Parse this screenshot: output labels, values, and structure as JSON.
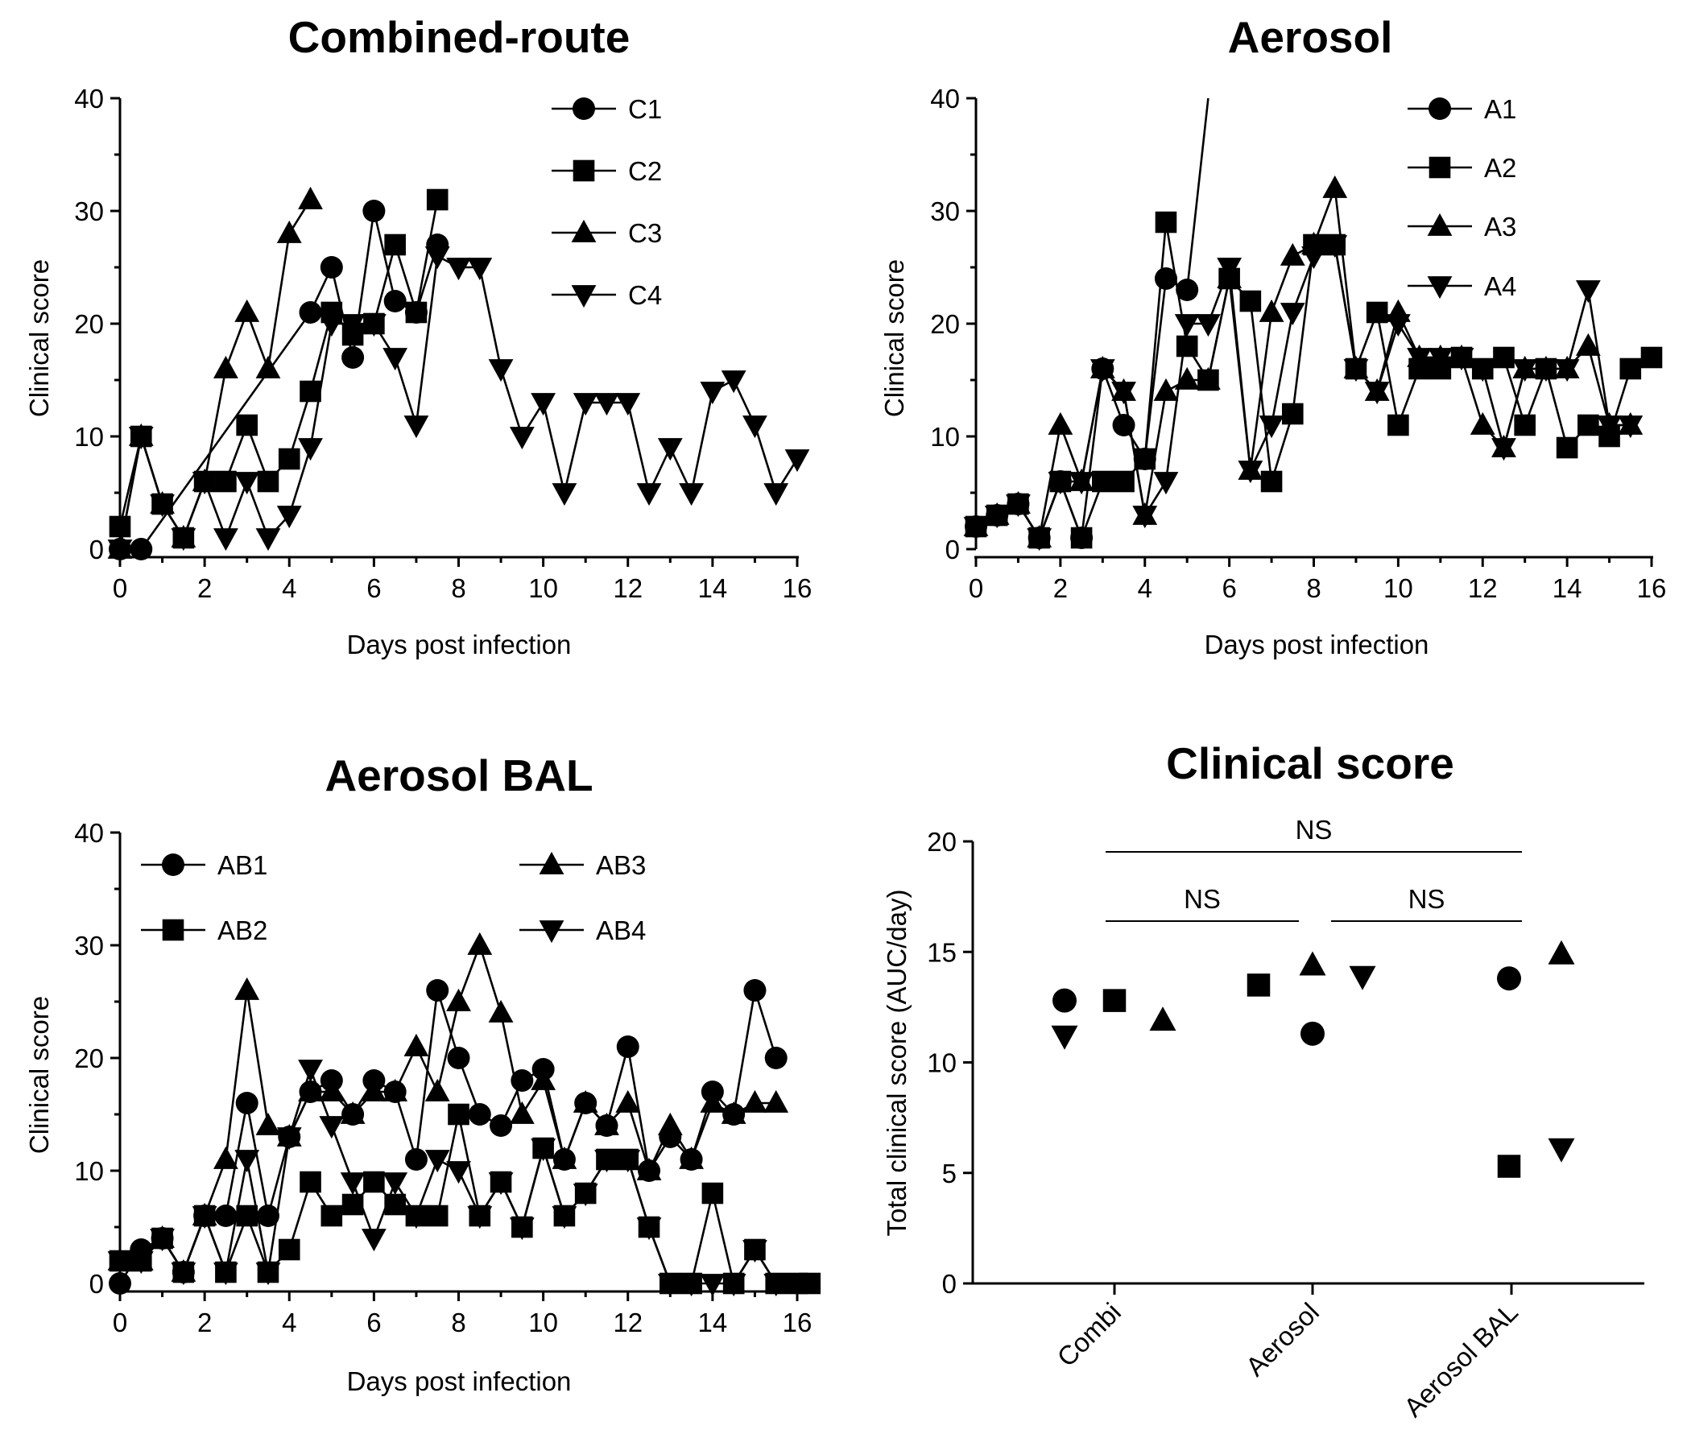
{
  "colors": {
    "ink": "#000000",
    "background": "#ffffff"
  },
  "chart_data": [
    {
      "type": "line",
      "title": "Combined-route",
      "xlabel": "Days post infection",
      "ylabel": "Clinical score",
      "xlim": [
        0,
        16
      ],
      "ylim": [
        0,
        40
      ],
      "xticks": [
        "0",
        "2",
        "4",
        "6",
        "8",
        "10",
        "12",
        "14",
        "16"
      ],
      "yticks": [
        "0",
        "10",
        "20",
        "30",
        "40"
      ],
      "legend": "top-right",
      "series": [
        {
          "name": "C1",
          "marker": "circle",
          "x": [
            0,
            0.5,
            4.5,
            5,
            5.5,
            6,
            6.5,
            7,
            7.5
          ],
          "y": [
            0,
            0,
            21,
            25,
            17,
            30,
            22,
            21,
            27
          ]
        },
        {
          "name": "C2",
          "marker": "square",
          "x": [
            0,
            0.5,
            1,
            1.5,
            2,
            2.5,
            3,
            3.5,
            4,
            4.5,
            5,
            5.5,
            6,
            6.5,
            7,
            7.5
          ],
          "y": [
            2,
            10,
            4,
            1,
            6,
            6,
            11,
            6,
            8,
            14,
            21,
            19,
            20,
            27,
            21,
            31
          ]
        },
        {
          "name": "C3",
          "marker": "triangle-up",
          "x": [
            0,
            0.5,
            1,
            1.5,
            2,
            2.5,
            3,
            3.5,
            4,
            4.5
          ],
          "y": [
            0,
            10,
            4,
            1,
            6,
            16,
            21,
            16,
            28,
            31
          ]
        },
        {
          "name": "C4",
          "marker": "triangle-down",
          "x": [
            0,
            0.5,
            1,
            1.5,
            2,
            2.5,
            3,
            3.5,
            4,
            4.5,
            5,
            5.5,
            6,
            6.5,
            7,
            7.5,
            8,
            8.5,
            9,
            9.5,
            10,
            10.5,
            11,
            11.5,
            12,
            12.5,
            13,
            13.5,
            14,
            14.5,
            15,
            15.5,
            16
          ],
          "y": [
            0,
            10,
            4,
            1,
            6,
            1,
            6,
            1,
            3,
            9,
            20,
            20,
            20,
            17,
            11,
            26,
            25,
            25,
            16,
            10,
            13,
            5,
            13,
            13,
            13,
            5,
            9,
            5,
            14,
            15,
            11,
            5,
            8
          ]
        }
      ]
    },
    {
      "type": "line",
      "title": "Aerosol",
      "xlabel": "Days post infection",
      "ylabel": "Clinical score",
      "xlim": [
        0,
        16
      ],
      "ylim": [
        0,
        40
      ],
      "xticks": [
        "0",
        "2",
        "4",
        "6",
        "8",
        "10",
        "12",
        "14",
        "16"
      ],
      "yticks": [
        "0",
        "10",
        "20",
        "30",
        "40"
      ],
      "legend": "top-right",
      "series": [
        {
          "name": "A1",
          "marker": "circle",
          "x": [
            0,
            0.5,
            1,
            1.5,
            2,
            2.5,
            3,
            3.5,
            4,
            4.5,
            5,
            5.5
          ],
          "y": [
            2,
            3,
            4,
            1,
            6,
            1,
            16,
            11,
            8,
            24,
            23,
            40
          ]
        },
        {
          "name": "A2",
          "marker": "square",
          "x": [
            0,
            0.5,
            1,
            1.5,
            2,
            2.5,
            3,
            3.5,
            4,
            4.5,
            5,
            5.5,
            6,
            6.5,
            7,
            7.5,
            8,
            8.5,
            9,
            9.5,
            10,
            10.5,
            11,
            11.5,
            12,
            12.5,
            13,
            13.5,
            14,
            14.5,
            15,
            15.5,
            16
          ],
          "y": [
            2,
            3,
            4,
            1,
            6,
            1,
            6,
            6,
            8,
            29,
            18,
            15,
            24,
            22,
            6,
            12,
            27,
            27,
            16,
            21,
            11,
            16,
            16,
            17,
            16,
            17,
            11,
            16,
            9,
            11,
            10,
            16,
            17
          ]
        },
        {
          "name": "A3",
          "marker": "triangle-up",
          "x": [
            0,
            0.5,
            1,
            1.5,
            2,
            2.5,
            3,
            3.5,
            4,
            4.5,
            5,
            5.5,
            6,
            6.5,
            7,
            7.5,
            8,
            8.5,
            9,
            9.5,
            10,
            10.5,
            11,
            11.5,
            12,
            12.5,
            13,
            13.5,
            14,
            14.5,
            15,
            15.5
          ],
          "y": [
            2,
            3,
            4,
            1,
            11,
            6,
            16,
            14,
            3,
            14,
            15,
            15,
            24,
            7,
            21,
            26,
            27,
            32,
            16,
            14,
            21,
            17,
            17,
            17,
            11,
            9,
            16,
            16,
            16,
            18,
            11,
            11
          ]
        },
        {
          "name": "A4",
          "marker": "triangle-down",
          "x": [
            0,
            0.5,
            1,
            1.5,
            2,
            2.5,
            3,
            3.5,
            4,
            4.5,
            5,
            5.5,
            6,
            6.5,
            7,
            7.5,
            8,
            8.5,
            9,
            9.5,
            10,
            10.5,
            11,
            11.5,
            12,
            12.5,
            13,
            13.5,
            14,
            14.5,
            15,
            15.5
          ],
          "y": [
            2,
            3,
            4,
            1,
            6,
            6,
            16,
            14,
            3,
            6,
            20,
            20,
            25,
            7,
            11,
            21,
            26,
            27,
            16,
            14,
            20,
            17,
            17,
            17,
            16,
            9,
            16,
            16,
            16,
            23,
            11,
            11
          ]
        }
      ]
    },
    {
      "type": "line",
      "title": "Aerosol BAL",
      "xlabel": "Days post infection",
      "ylabel": "Clinical score",
      "xlim": [
        0,
        16.3
      ],
      "ylim": [
        0,
        40
      ],
      "xticks": [
        "0",
        "2",
        "4",
        "6",
        "8",
        "10",
        "12",
        "14",
        "16"
      ],
      "yticks": [
        "0",
        "10",
        "20",
        "30",
        "40"
      ],
      "legend": "top",
      "series": [
        {
          "name": "AB1",
          "marker": "circle",
          "x": [
            0,
            0.5,
            1,
            1.5,
            2,
            2.5,
            3,
            3.5,
            4,
            4.5,
            5,
            5.5,
            6,
            6.5,
            7,
            7.5,
            8,
            8.5,
            9,
            9.5,
            10,
            10.5,
            11,
            11.5,
            12,
            12.5,
            13,
            13.5,
            14,
            14.5,
            15,
            15.5
          ],
          "y": [
            0,
            3,
            4,
            1,
            6,
            6,
            16,
            6,
            13,
            17,
            18,
            15,
            18,
            17,
            11,
            26,
            20,
            15,
            14,
            18,
            19,
            11,
            16,
            14,
            21,
            10,
            13,
            11,
            17,
            15,
            26,
            20
          ]
        },
        {
          "name": "AB2",
          "marker": "square",
          "x": [
            0,
            0.5,
            1,
            1.5,
            2,
            2.5,
            3,
            3.5,
            4,
            4.5,
            5,
            5.5,
            6,
            6.5,
            7,
            7.5,
            8,
            8.5,
            9,
            9.5,
            10,
            10.5,
            11,
            11.5,
            12,
            12.5,
            13,
            13.5,
            14,
            14.5,
            15,
            15.5,
            16,
            16.3
          ],
          "y": [
            2,
            2,
            4,
            1,
            6,
            1,
            6,
            1,
            3,
            9,
            6,
            7,
            9,
            7,
            6,
            6,
            15,
            6,
            9,
            5,
            12,
            6,
            8,
            11,
            11,
            5,
            0,
            0,
            8,
            0,
            3,
            0,
            0,
            0
          ]
        },
        {
          "name": "AB3",
          "marker": "triangle-up",
          "x": [
            0,
            0.5,
            1,
            1.5,
            2,
            2.5,
            3,
            3.5,
            4,
            4.5,
            5,
            5.5,
            6,
            6.5,
            7,
            7.5,
            8,
            8.5,
            9,
            9.5,
            10,
            10.5,
            11,
            11.5,
            12,
            12.5,
            13,
            13.5,
            14,
            14.5,
            15,
            15.5
          ],
          "y": [
            2,
            2,
            4,
            1,
            6,
            11,
            26,
            14,
            13,
            17,
            17,
            15,
            17,
            17,
            21,
            17,
            25,
            30,
            24,
            15,
            18,
            11,
            16,
            14,
            16,
            10,
            14,
            11,
            16,
            15,
            16,
            16
          ]
        },
        {
          "name": "AB4",
          "marker": "triangle-down",
          "x": [
            0,
            0.5,
            1,
            1.5,
            2,
            2.5,
            3,
            3.5,
            4,
            4.5,
            5,
            5.5,
            6,
            6.5,
            7,
            7.5,
            8,
            8.5,
            9,
            9.5,
            10,
            10.5,
            11,
            11.5,
            12,
            12.5,
            13,
            13.5,
            14,
            14.5,
            15,
            15.5,
            16
          ],
          "y": [
            2,
            2,
            4,
            1,
            6,
            1,
            11,
            1,
            13,
            19,
            14,
            9,
            4,
            9,
            6,
            11,
            10,
            6,
            9,
            5,
            12,
            6,
            8,
            11,
            11,
            5,
            0,
            0,
            0,
            0,
            3,
            0,
            0
          ]
        }
      ]
    },
    {
      "type": "scatter",
      "title": "Clinical score",
      "xlabel": "",
      "ylabel": "Total clinical score (AUC/day)",
      "ylim": [
        0,
        20
      ],
      "yticks": [
        "0",
        "5",
        "10",
        "15",
        "20"
      ],
      "categories": [
        "Combi",
        "Aerosol",
        "Aerosol BAL"
      ],
      "groups": [
        {
          "category": "Combi",
          "points": [
            {
              "marker": "circle",
              "value": 12.8
            },
            {
              "marker": "triangle-down",
              "value": 11.2
            },
            {
              "marker": "square",
              "value": 12.8
            },
            {
              "marker": "triangle-up",
              "value": 11.9
            }
          ]
        },
        {
          "category": "Aerosol",
          "points": [
            {
              "marker": "square",
              "value": 13.5
            },
            {
              "marker": "circle",
              "value": 11.3
            },
            {
              "marker": "triangle-up",
              "value": 14.4
            },
            {
              "marker": "triangle-down",
              "value": 13.9
            }
          ]
        },
        {
          "category": "Aerosol BAL",
          "points": [
            {
              "marker": "circle",
              "value": 13.8
            },
            {
              "marker": "square",
              "value": 5.3
            },
            {
              "marker": "triangle-up",
              "value": 14.9
            },
            {
              "marker": "triangle-down",
              "value": 6.1
            }
          ]
        }
      ],
      "annotations": [
        {
          "from": "Combi",
          "to": "Aerosol BAL",
          "text": "NS"
        },
        {
          "from": "Combi",
          "to": "Aerosol",
          "text": "NS"
        },
        {
          "from": "Aerosol",
          "to": "Aerosol BAL",
          "text": "NS"
        }
      ]
    }
  ]
}
